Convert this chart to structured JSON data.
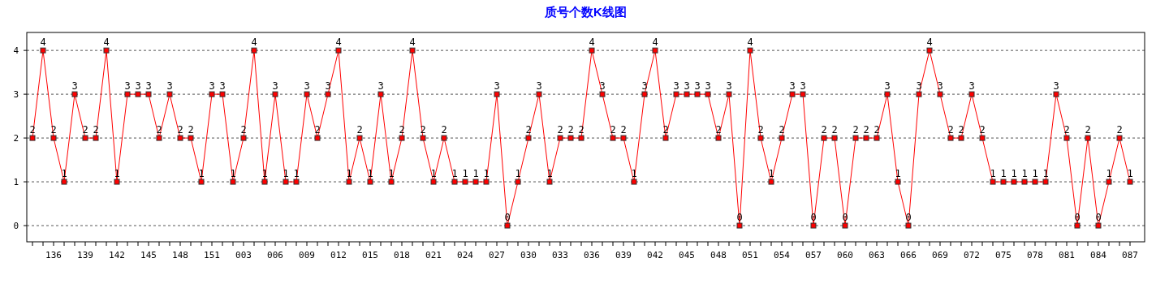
{
  "chart_data": {
    "type": "line",
    "title": "质号个数K线图",
    "categories": [
      null,
      null,
      "136",
      null,
      null,
      "139",
      null,
      null,
      "142",
      null,
      null,
      "145",
      null,
      null,
      "148",
      null,
      null,
      "151",
      null,
      null,
      "003",
      null,
      null,
      "006",
      null,
      null,
      "009",
      null,
      null,
      "012",
      null,
      null,
      "015",
      null,
      null,
      "018",
      null,
      null,
      "021",
      null,
      null,
      "024",
      null,
      null,
      "027",
      null,
      null,
      "030",
      null,
      null,
      "033",
      null,
      null,
      "036",
      null,
      null,
      "039",
      null,
      null,
      "042",
      null,
      null,
      "045",
      null,
      null,
      "048",
      null,
      null,
      "051",
      null,
      null,
      "054",
      null,
      null,
      "057",
      null,
      null,
      "060",
      null,
      null,
      "063",
      null,
      null,
      "066",
      null,
      null,
      "069",
      null,
      null,
      "072",
      null,
      null,
      "075",
      null,
      null,
      "078",
      null,
      null,
      "081",
      null,
      null,
      "084",
      null,
      null,
      "087"
    ],
    "values": [
      2,
      4,
      2,
      1,
      3,
      2,
      2,
      4,
      1,
      3,
      3,
      3,
      2,
      3,
      2,
      2,
      1,
      3,
      3,
      1,
      2,
      4,
      1,
      3,
      1,
      1,
      3,
      2,
      3,
      4,
      1,
      2,
      1,
      3,
      1,
      2,
      4,
      2,
      1,
      2,
      1,
      1,
      1,
      1,
      3,
      0,
      1,
      2,
      3,
      1,
      2,
      2,
      2,
      4,
      3,
      2,
      2,
      1,
      3,
      4,
      2,
      3,
      3,
      3,
      3,
      2,
      3,
      0,
      4,
      2,
      1,
      2,
      3,
      3,
      0,
      2,
      2,
      0,
      2,
      2,
      2,
      3,
      1,
      0,
      3,
      4,
      3,
      2,
      2,
      3,
      2,
      1,
      1,
      1,
      1,
      1,
      1,
      3,
      2,
      0,
      2,
      0,
      1,
      2,
      1
    ],
    "color": "#ff0000",
    "ylim": [
      -0.37,
      4.41
    ],
    "yticks": [
      0,
      1,
      2,
      3,
      4
    ],
    "grid": "y",
    "marker": "square",
    "line_style": "solid",
    "data_labels": true
  }
}
